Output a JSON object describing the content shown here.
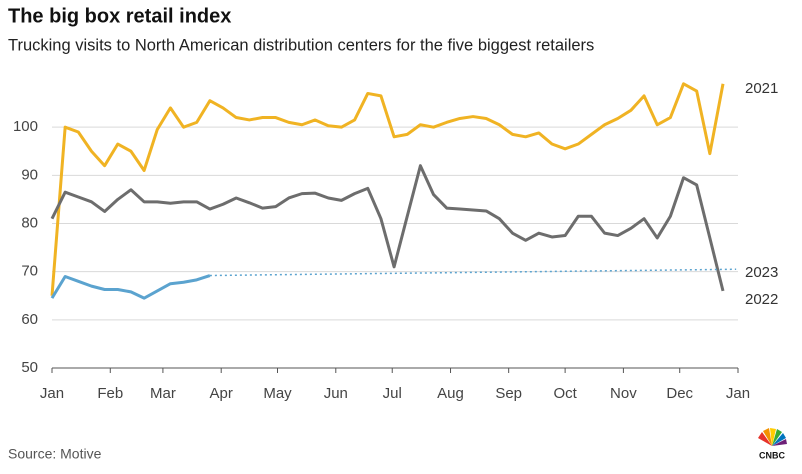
{
  "chart_data": {
    "type": "line",
    "title": "The big box retail index",
    "subtitle": "Trucking visits to North American distribution centers for the five biggest retailers",
    "source": "Source: Motive",
    "logo": "CNBC",
    "xlim": [
      0,
      52.14
    ],
    "xticks": [
      {
        "value": 0,
        "label": "Jan"
      },
      {
        "value": 4.43,
        "label": "Feb"
      },
      {
        "value": 8.43,
        "label": "Mar"
      },
      {
        "value": 12.86,
        "label": "Apr"
      },
      {
        "value": 17.14,
        "label": "May"
      },
      {
        "value": 21.57,
        "label": "Jun"
      },
      {
        "value": 25.86,
        "label": "Jul"
      },
      {
        "value": 30.29,
        "label": "Aug"
      },
      {
        "value": 34.71,
        "label": "Sep"
      },
      {
        "value": 39,
        "label": "Oct"
      },
      {
        "value": 43.43,
        "label": "Nov"
      },
      {
        "value": 47.71,
        "label": "Dec"
      },
      {
        "value": 52.14,
        "label": "Jan"
      }
    ],
    "ylim": [
      50,
      110
    ],
    "yticks": [
      50,
      60,
      70,
      80,
      90,
      100
    ],
    "grid": true,
    "x": [
      0,
      1,
      2,
      3,
      4,
      5,
      6,
      7,
      8,
      9,
      10,
      11,
      12,
      13,
      14,
      15,
      16,
      17,
      18,
      19,
      20,
      21,
      22,
      23,
      24,
      25,
      26,
      27,
      28,
      29,
      30,
      31,
      32,
      33,
      34,
      35,
      36,
      37,
      38,
      39,
      40,
      41,
      42,
      43,
      44,
      45,
      46,
      47,
      48,
      49,
      50,
      51
    ],
    "series": [
      {
        "name": "2021",
        "color": "#f0b323",
        "values": [
          65,
          100,
          99,
          95,
          92,
          96.5,
          95,
          91,
          99.5,
          104,
          100,
          101,
          105.5,
          104,
          102,
          101.5,
          102,
          102,
          101,
          100.5,
          101.5,
          100.3,
          100,
          101.5,
          107,
          106.5,
          98,
          98.5,
          100.5,
          100,
          101,
          101.8,
          102.2,
          101.8,
          100.5,
          98.5,
          98,
          98.8,
          96.5,
          95.5,
          96.5,
          98.5,
          100.5,
          101.8,
          103.5,
          106.5,
          100.5,
          102,
          109,
          107.5,
          94.5,
          109
        ]
      },
      {
        "name": "2022",
        "color": "#6d6d6d",
        "values": [
          81,
          86.5,
          85.5,
          84.5,
          82.5,
          85,
          87,
          84.5,
          84.5,
          84.2,
          84.5,
          84.5,
          83,
          84,
          85.3,
          84.3,
          83.2,
          83.5,
          85.3,
          86.2,
          86.3,
          85.3,
          84.8,
          86.2,
          87.3,
          81,
          71,
          81.5,
          92,
          86,
          83.2,
          83,
          82.8,
          82.6,
          81,
          78,
          76.5,
          78,
          77.2,
          77.5,
          81.5,
          81.5,
          78,
          77.5,
          79,
          81,
          77,
          81.5,
          89.5,
          88,
          77,
          66
        ]
      },
      {
        "name": "2023",
        "color": "#5ba3cf",
        "values": [
          64.5,
          69,
          68,
          67,
          66.3,
          66.3,
          65.8,
          64.5,
          66,
          67.5,
          67.8,
          68.3,
          69.2,
          null,
          null,
          null,
          null,
          null,
          null,
          null,
          null,
          null,
          null,
          null,
          null,
          null,
          null,
          null,
          null,
          null,
          null,
          null,
          null,
          null,
          null,
          null,
          null,
          null,
          null,
          null,
          null,
          null,
          null,
          null,
          null,
          null,
          null,
          null,
          null,
          null,
          null,
          null
        ],
        "projection": {
          "x": [
            12,
            52
          ],
          "values": [
            69.2,
            70.5
          ]
        }
      }
    ]
  }
}
